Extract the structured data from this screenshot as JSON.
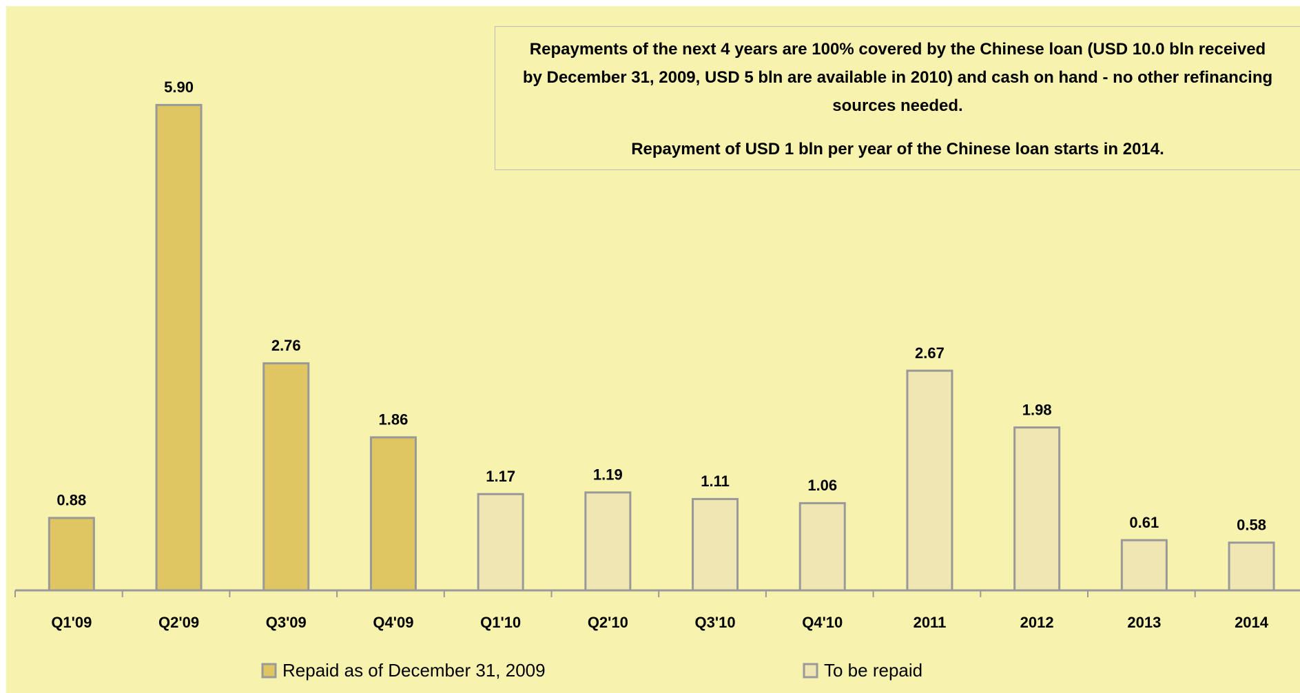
{
  "chart_data": {
    "type": "bar",
    "annotations": [
      "Repayments of the next 4 years are 100% covered by the Chinese loan (USD 10.0 bln received by December 31, 2009, USD 5 bln are available in 2010) and cash on hand - no other refinancing sources needed.",
      "Repayment of USD 1 bln per year of the Chinese loan starts in 2014."
    ],
    "categories": [
      "Q1'09",
      "Q2'09",
      "Q3'09",
      "Q4'09",
      "Q1'10",
      "Q2'10",
      "Q3'10",
      "Q4'10",
      "2011",
      "2012",
      "2013",
      "2014"
    ],
    "series": [
      {
        "name": "Repaid as of December 31, 2009",
        "color": "#dfc663",
        "values": [
          0.88,
          5.9,
          2.76,
          1.86,
          null,
          null,
          null,
          null,
          null,
          null,
          null,
          null
        ],
        "value_labels": [
          "0.88",
          "5.90",
          "2.76",
          "1.86",
          null,
          null,
          null,
          null,
          null,
          null,
          null,
          null
        ]
      },
      {
        "name": "To be repaid",
        "color": "#f0e6b4",
        "values": [
          null,
          null,
          null,
          null,
          1.17,
          1.19,
          1.11,
          1.06,
          2.67,
          1.98,
          0.61,
          0.58
        ],
        "value_labels": [
          null,
          null,
          null,
          null,
          "1.17",
          "1.19",
          "1.11",
          "1.06",
          "2.67",
          "1.98",
          "0.61",
          "0.58"
        ]
      }
    ],
    "ylim": [
      0,
      7
    ]
  }
}
